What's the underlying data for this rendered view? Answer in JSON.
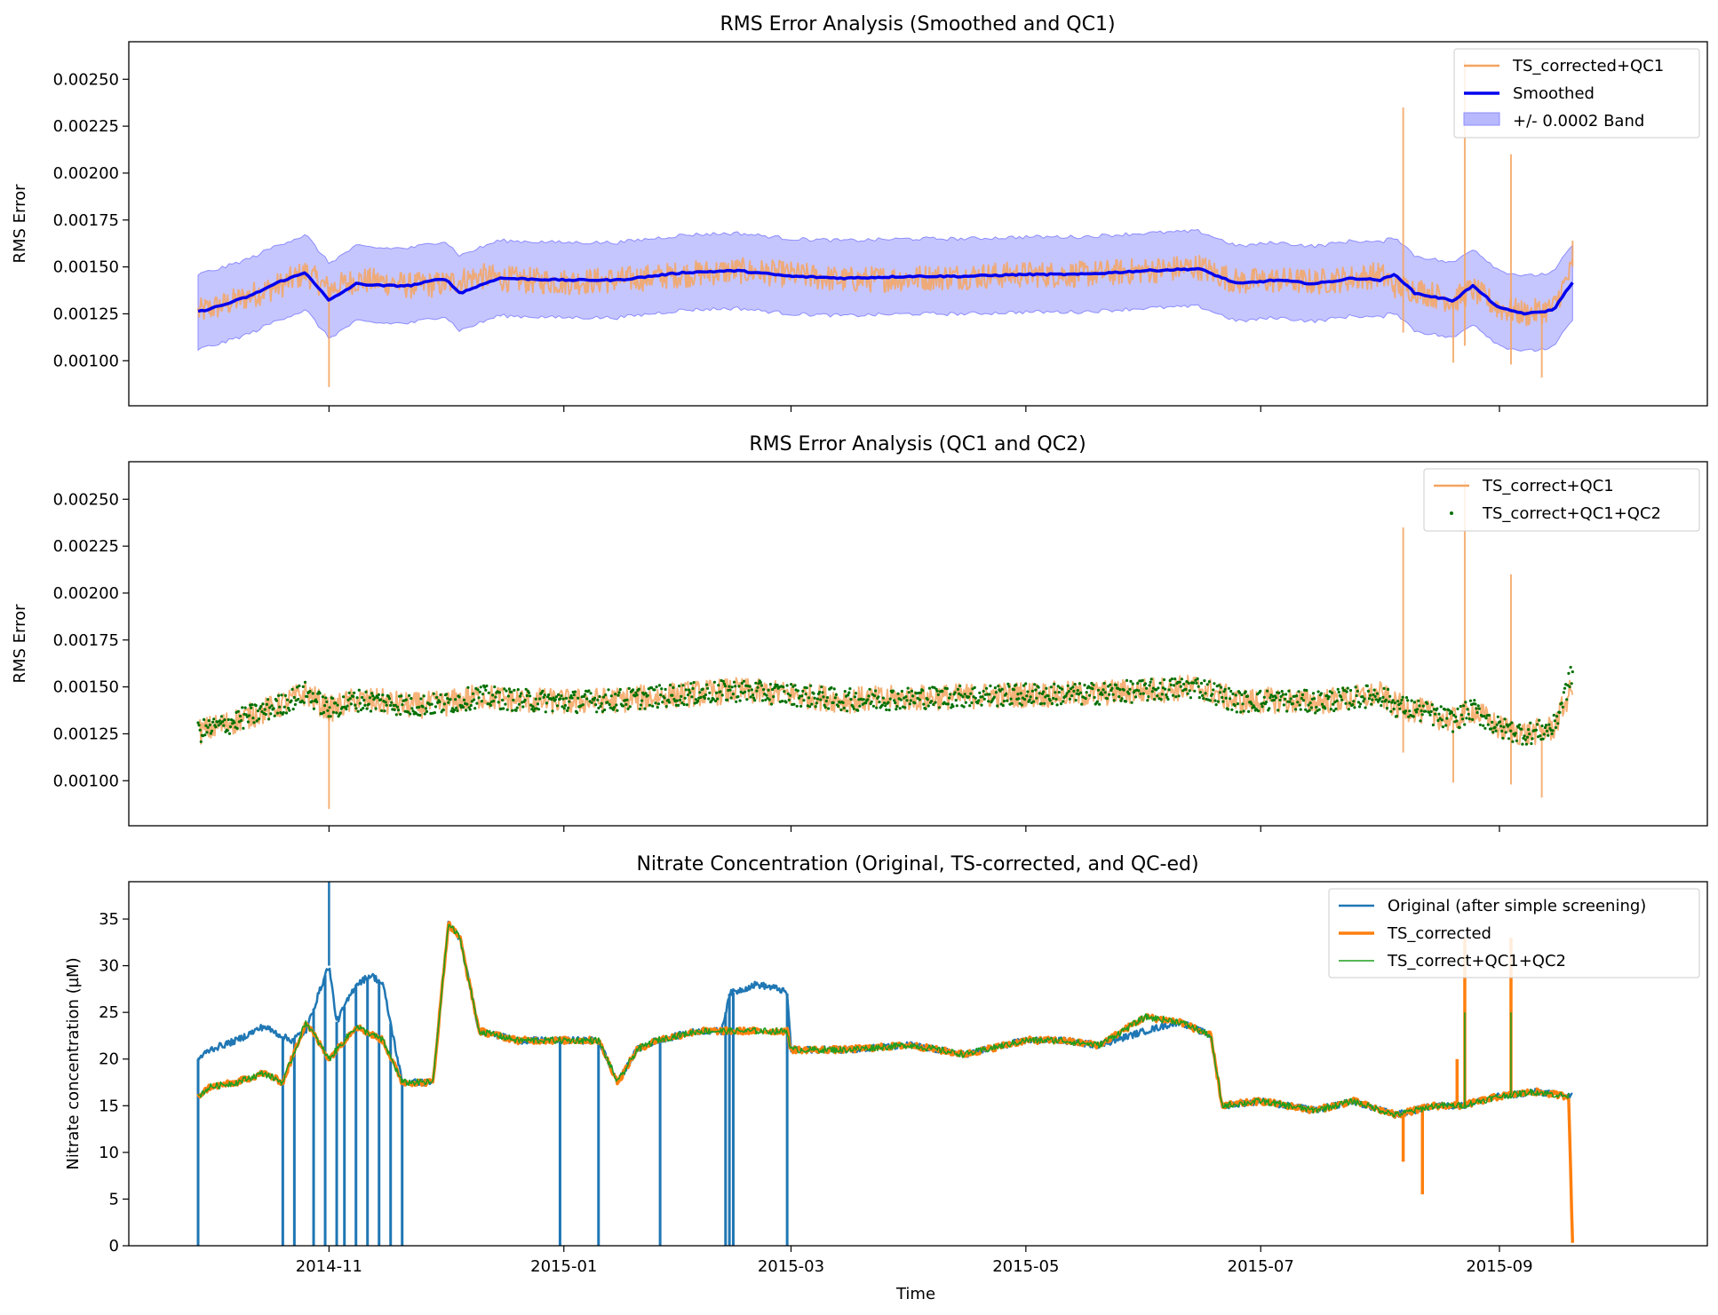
{
  "x_ticks": [
    "2014-11",
    "2015-01",
    "2015-03",
    "2015-05",
    "2015-07",
    "2015-09"
  ],
  "x_label": "Time",
  "colors": {
    "orange_light": "#f4a460",
    "orange_bold": "#ff7f0e",
    "blue_smoothed": "#0000ee",
    "band_fill": "#b8b8ff",
    "band_edge": "#8c8cff",
    "blue_original": "#1f77b4",
    "green": "#1f9e1f",
    "green_dots": "#007000"
  },
  "chart_data": [
    {
      "type": "line",
      "title": "RMS Error Analysis (Smoothed and QC1)",
      "ylabel": "RMS Error",
      "ylim": [
        0.00076,
        0.0027
      ],
      "y_ticks": [
        "0.00100",
        "0.00125",
        "0.00150",
        "0.00175",
        "0.00200",
        "0.00225",
        "0.00250"
      ],
      "legend": {
        "placement": "top-right",
        "entries": [
          "TS_corrected+QC1",
          "Smoothed",
          "+/- 0.0002 Band"
        ]
      },
      "band_half_width": 0.0002,
      "series": [
        {
          "name": "TS_corrected+QC1",
          "kind": "noisy-line",
          "x": [
            "2014-09-28",
            "2014-10-05",
            "2014-10-12",
            "2014-10-19",
            "2014-10-26",
            "2014-11-01",
            "2014-11-08",
            "2014-11-15",
            "2014-11-22",
            "2014-12-01",
            "2014-12-10",
            "2014-12-20",
            "2015-01-01",
            "2015-01-15",
            "2015-02-01",
            "2015-02-15",
            "2015-03-01",
            "2015-03-15",
            "2015-04-01",
            "2015-04-15",
            "2015-05-01",
            "2015-05-15",
            "2015-06-01",
            "2015-06-15",
            "2015-06-25",
            "2015-07-05",
            "2015-07-15",
            "2015-07-25",
            "2015-08-01",
            "2015-08-05",
            "2015-08-10",
            "2015-08-15",
            "2015-08-20",
            "2015-08-25",
            "2015-09-01",
            "2015-09-08",
            "2015-09-15",
            "2015-09-20"
          ],
          "y": [
            0.00126,
            0.0013,
            0.00135,
            0.0014,
            0.00147,
            0.00138,
            0.00143,
            0.00142,
            0.0014,
            0.00141,
            0.00145,
            0.00143,
            0.00142,
            0.00143,
            0.00146,
            0.00148,
            0.00146,
            0.00143,
            0.00144,
            0.00145,
            0.00146,
            0.00146,
            0.00148,
            0.0015,
            0.00142,
            0.00143,
            0.00142,
            0.00144,
            0.00146,
            0.0014,
            0.00138,
            0.00135,
            0.00132,
            0.00138,
            0.00128,
            0.00125,
            0.00128,
            0.0015
          ],
          "spikes": [
            [
              "2014-11-01",
              0.00086
            ],
            [
              "2015-08-07",
              0.00235
            ],
            [
              "2015-08-07",
              0.00115
            ],
            [
              "2015-08-20",
              0.00099
            ],
            [
              "2015-08-23",
              0.0026
            ],
            [
              "2015-08-23",
              0.00108
            ],
            [
              "2015-09-04",
              0.0021
            ],
            [
              "2015-09-04",
              0.00098
            ],
            [
              "2015-09-12",
              0.00091
            ],
            [
              "2015-09-20",
              0.00164
            ]
          ]
        },
        {
          "name": "Smoothed",
          "kind": "line",
          "x": [
            "2014-09-28",
            "2014-10-05",
            "2014-10-12",
            "2014-10-19",
            "2014-10-26",
            "2014-11-01",
            "2014-11-08",
            "2014-11-15",
            "2014-11-22",
            "2014-12-01",
            "2014-12-05",
            "2014-12-15",
            "2015-01-01",
            "2015-01-15",
            "2015-02-01",
            "2015-02-15",
            "2015-03-01",
            "2015-03-15",
            "2015-04-01",
            "2015-04-15",
            "2015-05-01",
            "2015-05-15",
            "2015-06-01",
            "2015-06-15",
            "2015-06-25",
            "2015-07-05",
            "2015-07-15",
            "2015-07-25",
            "2015-08-01",
            "2015-08-05",
            "2015-08-10",
            "2015-08-15",
            "2015-08-20",
            "2015-08-25",
            "2015-09-01",
            "2015-09-08",
            "2015-09-15",
            "2015-09-20"
          ],
          "y": [
            0.00126,
            0.0013,
            0.00135,
            0.00142,
            0.00147,
            0.00132,
            0.00141,
            0.0014,
            0.0014,
            0.00144,
            0.00136,
            0.00144,
            0.00143,
            0.00143,
            0.00147,
            0.00148,
            0.00145,
            0.00144,
            0.00145,
            0.00145,
            0.00146,
            0.00146,
            0.00148,
            0.00149,
            0.00141,
            0.00143,
            0.00141,
            0.00144,
            0.00143,
            0.00146,
            0.00136,
            0.00134,
            0.00132,
            0.0014,
            0.00128,
            0.00125,
            0.00127,
            0.00142
          ]
        }
      ]
    },
    {
      "type": "line",
      "title": "RMS Error Analysis (QC1 and QC2)",
      "ylabel": "RMS Error",
      "ylim": [
        0.00076,
        0.0027
      ],
      "y_ticks": [
        "0.00100",
        "0.00125",
        "0.00150",
        "0.00175",
        "0.00200",
        "0.00225",
        "0.00250"
      ],
      "legend": {
        "placement": "top-right",
        "entries": [
          "TS_correct+QC1",
          "TS_correct+QC1+QC2"
        ]
      },
      "series": [
        {
          "name": "TS_correct+QC1",
          "kind": "noisy-line",
          "x": [
            "2014-09-28",
            "2014-10-05",
            "2014-10-12",
            "2014-10-19",
            "2014-10-26",
            "2014-11-01",
            "2014-11-08",
            "2014-11-15",
            "2014-11-22",
            "2014-12-01",
            "2014-12-10",
            "2014-12-20",
            "2015-01-01",
            "2015-01-15",
            "2015-02-01",
            "2015-02-15",
            "2015-03-01",
            "2015-03-15",
            "2015-04-01",
            "2015-04-15",
            "2015-05-01",
            "2015-05-15",
            "2015-06-01",
            "2015-06-15",
            "2015-06-25",
            "2015-07-05",
            "2015-07-15",
            "2015-07-25",
            "2015-08-01",
            "2015-08-05",
            "2015-08-10",
            "2015-08-15",
            "2015-08-20",
            "2015-08-25",
            "2015-09-01",
            "2015-09-08",
            "2015-09-15",
            "2015-09-20"
          ],
          "y": [
            0.00126,
            0.0013,
            0.00135,
            0.0014,
            0.00147,
            0.00138,
            0.00143,
            0.00142,
            0.0014,
            0.00141,
            0.00145,
            0.00143,
            0.00142,
            0.00143,
            0.00146,
            0.00148,
            0.00146,
            0.00143,
            0.00144,
            0.00145,
            0.00146,
            0.00146,
            0.00148,
            0.0015,
            0.00142,
            0.00143,
            0.00142,
            0.00144,
            0.00146,
            0.0014,
            0.00138,
            0.00135,
            0.00132,
            0.00138,
            0.00128,
            0.00125,
            0.00128,
            0.0015
          ],
          "spikes": [
            [
              "2014-11-01",
              0.00085
            ],
            [
              "2015-08-07",
              0.00235
            ],
            [
              "2015-08-07",
              0.00115
            ],
            [
              "2015-08-20",
              0.00099
            ],
            [
              "2015-08-23",
              0.0026
            ],
            [
              "2015-09-04",
              0.0021
            ],
            [
              "2015-09-04",
              0.00098
            ],
            [
              "2015-09-12",
              0.00091
            ]
          ]
        },
        {
          "name": "TS_correct+QC1+QC2",
          "kind": "scatter",
          "x": [
            "2014-09-28",
            "2014-10-05",
            "2014-10-12",
            "2014-10-19",
            "2014-10-26",
            "2014-11-01",
            "2014-11-08",
            "2014-11-15",
            "2014-11-22",
            "2014-12-01",
            "2014-12-10",
            "2014-12-20",
            "2015-01-01",
            "2015-01-15",
            "2015-02-01",
            "2015-02-15",
            "2015-03-01",
            "2015-03-15",
            "2015-04-01",
            "2015-04-15",
            "2015-05-01",
            "2015-05-15",
            "2015-06-01",
            "2015-06-15",
            "2015-06-25",
            "2015-07-05",
            "2015-07-15",
            "2015-07-25",
            "2015-08-01",
            "2015-08-05",
            "2015-08-10",
            "2015-08-15",
            "2015-08-20",
            "2015-08-25",
            "2015-09-01",
            "2015-09-08",
            "2015-09-15",
            "2015-09-20"
          ],
          "y": [
            0.00126,
            0.0013,
            0.00135,
            0.0014,
            0.00147,
            0.00138,
            0.00143,
            0.00142,
            0.0014,
            0.00141,
            0.00145,
            0.00143,
            0.00142,
            0.00143,
            0.00146,
            0.00148,
            0.00146,
            0.00143,
            0.00144,
            0.00145,
            0.00146,
            0.00146,
            0.00148,
            0.0015,
            0.00142,
            0.00143,
            0.00142,
            0.00144,
            0.00146,
            0.0014,
            0.00138,
            0.00135,
            0.00132,
            0.00138,
            0.00128,
            0.00125,
            0.00128,
            0.00158
          ]
        }
      ]
    },
    {
      "type": "line",
      "title": "Nitrate Concentration (Original, TS-corrected, and QC-ed)",
      "ylabel": "Nitrate concentration (µM)",
      "xlabel": "Time",
      "ylim": [
        0,
        39
      ],
      "y_ticks": [
        "0",
        "5",
        "10",
        "15",
        "20",
        "25",
        "30",
        "35"
      ],
      "legend": {
        "placement": "top-right",
        "entries": [
          "Original (after simple screening)",
          "TS_corrected",
          "TS_correct+QC1+QC2"
        ]
      },
      "series": [
        {
          "name": "Original (after simple screening)",
          "kind": "line",
          "x": [
            "2014-09-28",
            "2014-10-01",
            "2014-10-08",
            "2014-10-15",
            "2014-10-22",
            "2014-10-26",
            "2014-10-31",
            "2014-11-01",
            "2014-11-03",
            "2014-11-08",
            "2014-11-12",
            "2014-11-15",
            "2014-11-20",
            "2014-11-28",
            "2014-12-02",
            "2014-12-05",
            "2014-12-10",
            "2014-12-20",
            "2015-01-01",
            "2015-01-10",
            "2015-01-15",
            "2015-01-20",
            "2015-01-25",
            "2015-02-05",
            "2015-02-11",
            "2015-02-13",
            "2015-02-20",
            "2015-02-26",
            "2015-02-28",
            "2015-03-01",
            "2015-03-15",
            "2015-04-01",
            "2015-04-15",
            "2015-05-01",
            "2015-05-10",
            "2015-05-20",
            "2015-06-01",
            "2015-06-10",
            "2015-06-18",
            "2015-06-21",
            "2015-07-01",
            "2015-07-15",
            "2015-07-25",
            "2015-08-05",
            "2015-08-15",
            "2015-08-22",
            "2015-09-01",
            "2015-09-10",
            "2015-09-20"
          ],
          "y": [
            20,
            21,
            22,
            23.5,
            22,
            23,
            29,
            30,
            24,
            28,
            29,
            28,
            17.5,
            17.5,
            34.5,
            33,
            23,
            22,
            22,
            22,
            17.5,
            21,
            22,
            23,
            23,
            27,
            28,
            27.5,
            27,
            21,
            21,
            21.5,
            20.5,
            22,
            22,
            21.5,
            23,
            24,
            22.5,
            15,
            15.5,
            14.5,
            15.5,
            14,
            15,
            15,
            16,
            16.5,
            16
          ],
          "drops": [
            "2014-09-28",
            "2014-10-20",
            "2014-10-23",
            "2014-10-28",
            "2014-10-31",
            "2014-11-03",
            "2014-11-05",
            "2014-11-08",
            "2014-11-11",
            "2014-11-14",
            "2014-11-17",
            "2014-11-20",
            "2014-12-31",
            "2015-01-10",
            "2015-01-26",
            "2015-02-12",
            "2015-02-13",
            "2015-02-14",
            "2015-02-28"
          ],
          "spikes": [
            [
              "2014-11-01",
              39
            ]
          ]
        },
        {
          "name": "TS_corrected",
          "kind": "line",
          "x": [
            "2014-09-28",
            "2014-10-01",
            "2014-10-08",
            "2014-10-15",
            "2014-10-20",
            "2014-10-26",
            "2014-11-01",
            "2014-11-08",
            "2014-11-15",
            "2014-11-20",
            "2014-11-28",
            "2014-12-02",
            "2014-12-05",
            "2014-12-10",
            "2014-12-20",
            "2015-01-01",
            "2015-01-10",
            "2015-01-15",
            "2015-01-20",
            "2015-01-25",
            "2015-02-05",
            "2015-02-20",
            "2015-02-28",
            "2015-03-01",
            "2015-03-15",
            "2015-04-01",
            "2015-04-15",
            "2015-05-01",
            "2015-05-10",
            "2015-05-20",
            "2015-06-01",
            "2015-06-10",
            "2015-06-18",
            "2015-06-21",
            "2015-07-01",
            "2015-07-15",
            "2015-07-25",
            "2015-08-05",
            "2015-08-15",
            "2015-08-22",
            "2015-09-01",
            "2015-09-10",
            "2015-09-19",
            "2015-09-20"
          ],
          "y": [
            16,
            17,
            17.5,
            18.5,
            17.5,
            24,
            20,
            23.5,
            22,
            17.5,
            17.5,
            34.5,
            33,
            23,
            22,
            22,
            22,
            17.5,
            21,
            22,
            23,
            23,
            23,
            21,
            21,
            21.5,
            20.5,
            22,
            22,
            21.5,
            24.5,
            24,
            22.5,
            15,
            15.5,
            14.5,
            15.5,
            14,
            15,
            15,
            16,
            16.5,
            16,
            0
          ],
          "spikes": [
            [
              "2015-08-07",
              9
            ],
            [
              "2015-08-12",
              5.5
            ],
            [
              "2015-08-21",
              20
            ],
            [
              "2015-08-23",
              33
            ],
            [
              "2015-09-04",
              33
            ]
          ]
        },
        {
          "name": "TS_correct+QC1+QC2",
          "kind": "line",
          "x": [
            "2014-09-28",
            "2014-10-01",
            "2014-10-08",
            "2014-10-15",
            "2014-10-20",
            "2014-10-26",
            "2014-11-01",
            "2014-11-08",
            "2014-11-15",
            "2014-11-20",
            "2014-11-28",
            "2014-12-02",
            "2014-12-05",
            "2014-12-10",
            "2014-12-20",
            "2015-01-01",
            "2015-01-10",
            "2015-01-15",
            "2015-01-20",
            "2015-01-25",
            "2015-02-05",
            "2015-02-20",
            "2015-02-28",
            "2015-03-01",
            "2015-03-15",
            "2015-04-01",
            "2015-04-15",
            "2015-05-01",
            "2015-05-10",
            "2015-05-20",
            "2015-06-01",
            "2015-06-10",
            "2015-06-18",
            "2015-06-21",
            "2015-07-01",
            "2015-07-15",
            "2015-07-25",
            "2015-08-05",
            "2015-08-15",
            "2015-08-22",
            "2015-09-01",
            "2015-09-10",
            "2015-09-19"
          ],
          "y": [
            16,
            17,
            17.5,
            18.5,
            17.5,
            24,
            20,
            23.5,
            22,
            17.5,
            17.5,
            34.5,
            33,
            23,
            22,
            22,
            22,
            17.5,
            21,
            22,
            23,
            23,
            23,
            21,
            21,
            21.5,
            20.5,
            22,
            22,
            21.5,
            24.5,
            24,
            22.5,
            15,
            15.5,
            14.5,
            15.5,
            14,
            15,
            15,
            16,
            16.5,
            16
          ],
          "spikes": [
            [
              "2015-08-23",
              25
            ],
            [
              "2015-09-04",
              25
            ]
          ]
        }
      ]
    }
  ]
}
